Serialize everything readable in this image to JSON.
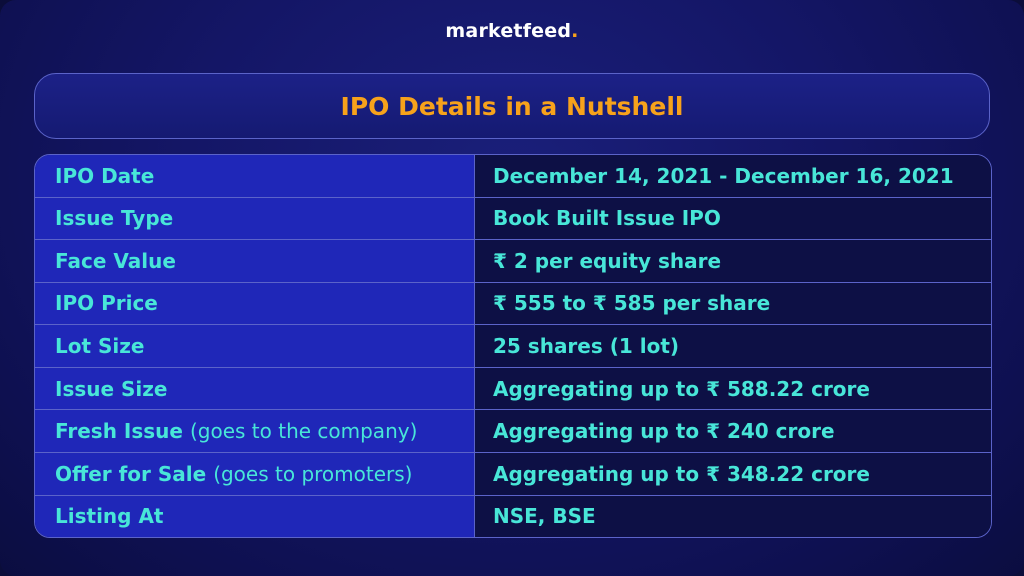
{
  "brand": {
    "name": "marketfeed",
    "dot": ".",
    "accent_color": "#f7a21b"
  },
  "title": "IPO Details in a Nutshell",
  "colors": {
    "background": "#141666",
    "label_cell": "#1f27b8",
    "value_cell": "#0d1045",
    "text": "#48e6d8",
    "border": "#5b63c9"
  },
  "rows": [
    {
      "label": "IPO Date",
      "note": "",
      "value": "December 14, 2021 - December 16, 2021"
    },
    {
      "label": "Issue Type",
      "note": "",
      "value": "Book Built Issue IPO"
    },
    {
      "label": "Face Value",
      "note": "",
      "value": "₹ 2 per equity share"
    },
    {
      "label": "IPO Price",
      "note": "",
      "value": "₹ 555 to ₹ 585 per share"
    },
    {
      "label": "Lot Size",
      "note": "",
      "value": "25 shares (1 lot)"
    },
    {
      "label": "Issue Size",
      "note": "",
      "value": "Aggregating up to ₹ 588.22 crore"
    },
    {
      "label": "Fresh Issue",
      "note": "(goes to the company)",
      "value": "Aggregating up to ₹ 240 crore"
    },
    {
      "label": "Offer for Sale",
      "note": "(goes to promoters)",
      "value": "Aggregating up to ₹ 348.22 crore"
    },
    {
      "label": "Listing At",
      "note": "",
      "value": "NSE, BSE"
    }
  ]
}
